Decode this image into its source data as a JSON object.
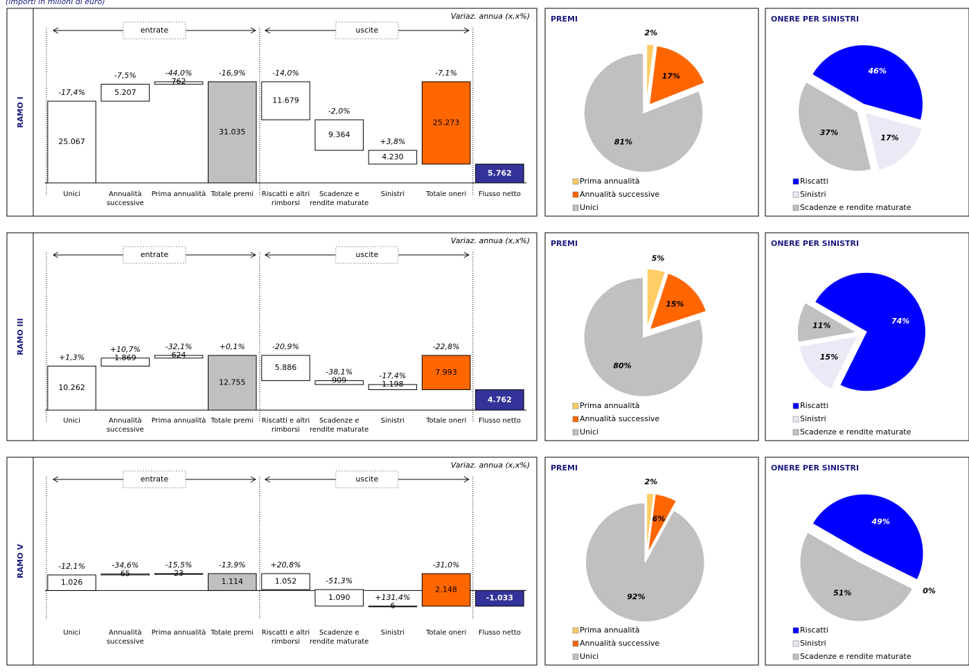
{
  "note": "(importi in milioni di euro)",
  "chart_data": [
    {
      "type": "waterfall",
      "row_label": "RAMO I",
      "annotation": "Variaz. annua (x,x%)",
      "groups": [
        "entrate",
        "uscite"
      ],
      "categories": [
        "Unici",
        "Annualità successive",
        "Prima annualità",
        "Totale premi",
        "Riscatti e altri rimborsi",
        "Scadenze e rendite maturate",
        "Sinistri",
        "Totale oneri",
        "Flusso netto"
      ],
      "values": [
        25067,
        5207,
        762,
        31035,
        11679,
        9364,
        4230,
        25273,
        5762
      ],
      "value_labels": [
        "25.067",
        "5.207",
        "762",
        "31.035",
        "11.679",
        "9.364",
        "4.230",
        "25.273",
        "5.762"
      ],
      "change_labels": [
        "-17,4%",
        "-7,5%",
        "-44,0%",
        "-16,9%",
        "-14,0%",
        "-2,0%",
        "+3,8%",
        "-7,1%",
        null
      ],
      "colors": [
        "#ffffff",
        "#ffffff",
        "#ffffff",
        "#c0c0c0",
        "#ffffff",
        "#ffffff",
        "#ffffff",
        "#ff6600",
        "#333399"
      ]
    },
    {
      "type": "pie",
      "title": "PREMI",
      "categories": [
        "Prima annualità",
        "Annualità successive",
        "Unici"
      ],
      "values": [
        2,
        17,
        81
      ],
      "value_labels": [
        "2%",
        "17%",
        "81%"
      ],
      "colors": [
        "#ffcc66",
        "#ff6600",
        "#c0c0c0"
      ]
    },
    {
      "type": "pie",
      "title": "ONERE PER SINISTRI",
      "categories": [
        "Riscatti",
        "Sinistri",
        "Scadenze e rendite maturate"
      ],
      "values": [
        46,
        17,
        37
      ],
      "value_labels": [
        "46%",
        "17%",
        "37%"
      ],
      "colors": [
        "#0000ff",
        "#eaeaf6",
        "#c0c0c0"
      ]
    },
    {
      "type": "waterfall",
      "row_label": "RAMO III",
      "annotation": "Variaz. annua (x,x%)",
      "groups": [
        "entrate",
        "uscite"
      ],
      "categories": [
        "Unici",
        "Annualità successive",
        "Prima annualità",
        "Totale premi",
        "Riscatti e altri rimborsi",
        "Scadenze e rendite maturate",
        "Sinistri",
        "Totale oneri",
        "Flusso netto"
      ],
      "values": [
        10262,
        1869,
        624,
        12755,
        5886,
        909,
        1198,
        7993,
        4762
      ],
      "value_labels": [
        "10.262",
        "1.869",
        "624",
        "12.755",
        "5.886",
        "909",
        "1.198",
        "7.993",
        "4.762"
      ],
      "change_labels": [
        "+1,3%",
        "+10,7%",
        "-32,1%",
        "+0,1%",
        "-20,9%",
        "-38,1%",
        "-17,4%",
        "-22,8%",
        null
      ],
      "colors": [
        "#ffffff",
        "#ffffff",
        "#ffffff",
        "#c0c0c0",
        "#ffffff",
        "#ffffff",
        "#ffffff",
        "#ff6600",
        "#333399"
      ]
    },
    {
      "type": "pie",
      "title": "PREMI",
      "categories": [
        "Prima annualità",
        "Annualità successive",
        "Unici"
      ],
      "values": [
        5,
        15,
        80
      ],
      "value_labels": [
        "5%",
        "15%",
        "80%"
      ],
      "colors": [
        "#ffcc66",
        "#ff6600",
        "#c0c0c0"
      ]
    },
    {
      "type": "pie",
      "title": "ONERE PER SINISTRI",
      "categories": [
        "Riscatti",
        "Sinistri",
        "Scadenze e rendite maturate"
      ],
      "values": [
        74,
        15,
        11
      ],
      "value_labels": [
        "74%",
        "15%",
        "11%"
      ],
      "colors": [
        "#0000ff",
        "#eaeaf6",
        "#c0c0c0"
      ]
    },
    {
      "type": "waterfall",
      "row_label": "RAMO V",
      "annotation": "Variaz. annua (x,x%)",
      "groups": [
        "entrate",
        "uscite"
      ],
      "categories": [
        "Unici",
        "Annualità successive",
        "Prima annualità",
        "Totale premi",
        "Riscatti e altri rimborsi",
        "Scadenze e rendite maturate",
        "Sinistri",
        "Totale oneri",
        "Flusso netto"
      ],
      "values": [
        1026,
        65,
        23,
        1114,
        1052,
        1090,
        6,
        2148,
        -1033
      ],
      "value_labels": [
        "1.026",
        "65",
        "23",
        "1.114",
        "1.052",
        "1.090",
        "6",
        "2.148",
        "-1.033"
      ],
      "change_labels": [
        "-12,1%",
        "-34,6%",
        "-15,5%",
        "-13,9%",
        "+20,8%",
        "-51,3%",
        "+131,4%",
        "-31,0%",
        null
      ],
      "colors": [
        "#ffffff",
        "#ffffff",
        "#ffffff",
        "#c0c0c0",
        "#ffffff",
        "#ffffff",
        "#ffffff",
        "#ff6600",
        "#333399"
      ]
    },
    {
      "type": "pie",
      "title": "PREMI",
      "categories": [
        "Prima annualità",
        "Annualità successive",
        "Unici"
      ],
      "values": [
        2,
        6,
        92
      ],
      "value_labels": [
        "2%",
        "6%",
        "92%"
      ],
      "colors": [
        "#ffcc66",
        "#ff6600",
        "#c0c0c0"
      ]
    },
    {
      "type": "pie",
      "title": "ONERE PER SINISTRI",
      "categories": [
        "Riscatti",
        "Sinistri",
        "Scadenze e rendite maturate"
      ],
      "values": [
        49,
        0,
        51
      ],
      "value_labels": [
        "49%",
        "0%",
        "51%"
      ],
      "colors": [
        "#0000ff",
        "#eaeaf6",
        "#c0c0c0"
      ]
    }
  ]
}
